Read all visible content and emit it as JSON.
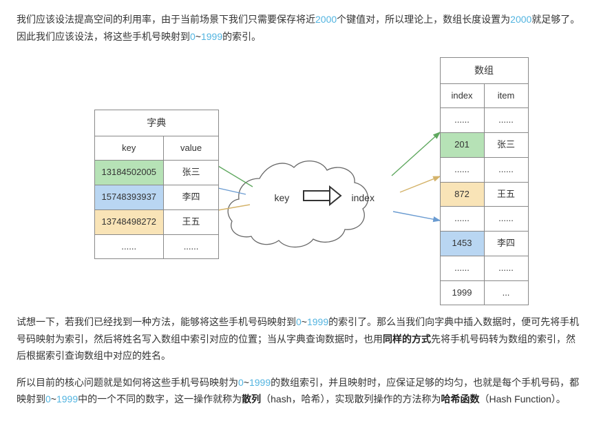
{
  "para1_a": "我们应该设法提高空间的利用率，由于当前场景下我们只需要保存将近",
  "para1_b": "2000",
  "para1_c": "个键值对，所以理论上，数组长度设置为",
  "para1_d": "2000",
  "para1_e": "就足够了。因此我们应该设法，将这些手机号映射到",
  "para1_f": "0",
  "para1_g": "~",
  "para1_h": "1999",
  "para1_i": "的索引。",
  "dict": {
    "title": "字典",
    "headers": [
      "key",
      "value"
    ],
    "rows": [
      {
        "key": "13184502005",
        "value": "张三",
        "cls": "green"
      },
      {
        "key": "15748393937",
        "value": "李四",
        "cls": "blue"
      },
      {
        "key": "13748498272",
        "value": "王五",
        "cls": "yellow"
      },
      {
        "key": "......",
        "value": "......",
        "cls": ""
      }
    ]
  },
  "arr": {
    "title": "数组",
    "headers": [
      "index",
      "item"
    ],
    "rows": [
      {
        "index": "......",
        "item": "......",
        "cls": ""
      },
      {
        "index": "201",
        "item": "张三",
        "cls": "green"
      },
      {
        "index": "......",
        "item": "......",
        "cls": ""
      },
      {
        "index": "872",
        "item": "王五",
        "cls": "yellow"
      },
      {
        "index": "......",
        "item": "......",
        "cls": ""
      },
      {
        "index": "1453",
        "item": "李四",
        "cls": "blue"
      },
      {
        "index": "......",
        "item": "......",
        "cls": ""
      },
      {
        "index": "1999",
        "item": "...",
        "cls": ""
      }
    ]
  },
  "cloud": {
    "left_label": "key",
    "right_label": "index"
  },
  "arrows": {
    "stroke_green": "#5fa85f",
    "stroke_blue": "#6a9bd1",
    "stroke_yellow": "#d4b36a",
    "stroke_gray": "#888888",
    "arrow_box_stroke": "#333333",
    "cloud_stroke": "#666666"
  },
  "para2_a": "试想一下，若我们已经找到一种方法，能够将这些手机号码映射到",
  "para2_b": "0",
  "para2_c": "~",
  "para2_d": "1999",
  "para2_e": "的索引了。那么当我们向字典中插入数据时，便可先将手机号码映射为索引，然后将姓名写入数组中索引对应的位置；当从字典查询数据时，也用",
  "para2_f": "同样的方式",
  "para2_g": "先将手机号码转为数组的索引，然后根据索引查询数组中对应的姓名。",
  "para3_a": "所以目前的核心问题就是如何将这些手机号码映射为",
  "para3_b": "0",
  "para3_c": "~",
  "para3_d": "1999",
  "para3_e": "的数组索引，并且映射时，应保证足够的均匀，也就是每个手机号码，都映射到",
  "para3_f": "0",
  "para3_g": "~",
  "para3_h": "1999",
  "para3_i": "中的一个不同的数字，这一操作就称为",
  "para3_j": "散列",
  "para3_k": "（hash，哈希），实现散列操作的方法称为",
  "para3_l": "哈希函数",
  "para3_m": "（Hash Function）。"
}
